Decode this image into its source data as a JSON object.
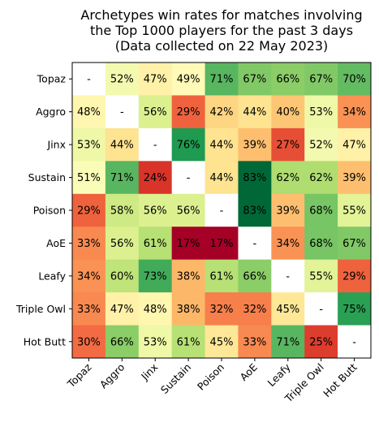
{
  "chart_data": {
    "type": "heatmap",
    "title": [
      "Archetypes win rates for matches involving",
      "the Top 1000 players for the past 3 days",
      "(Data collected on 22 May 2023)"
    ],
    "rows": [
      "Topaz",
      "Aggro",
      "Jinx",
      "Sustain",
      "Poison",
      "AoE",
      "Leafy",
      "Triple Owl",
      "Hot Butt"
    ],
    "columns": [
      "Topaz",
      "Aggro",
      "Jinx",
      "Sustain",
      "Poison",
      "AoE",
      "Leafy",
      "Triple Owl",
      "Hot Butt"
    ],
    "values": [
      [
        null,
        52,
        47,
        49,
        71,
        67,
        66,
        67,
        70
      ],
      [
        48,
        null,
        56,
        29,
        42,
        44,
        40,
        53,
        34
      ],
      [
        53,
        44,
        null,
        76,
        44,
        39,
        27,
        52,
        47
      ],
      [
        51,
        71,
        24,
        null,
        44,
        83,
        62,
        62,
        39
      ],
      [
        29,
        58,
        56,
        56,
        null,
        83,
        39,
        68,
        55
      ],
      [
        33,
        56,
        61,
        17,
        17,
        null,
        34,
        68,
        67
      ],
      [
        34,
        60,
        73,
        38,
        61,
        66,
        null,
        55,
        29
      ],
      [
        33,
        47,
        48,
        38,
        32,
        32,
        45,
        null,
        75
      ],
      [
        30,
        66,
        53,
        61,
        45,
        33,
        71,
        25,
        null
      ]
    ],
    "value_suffix": "%",
    "missing_label": "-",
    "colormap": "RdYlGn",
    "vmin": 17,
    "vmax": 83,
    "x_tick_rotation_deg": 45
  }
}
